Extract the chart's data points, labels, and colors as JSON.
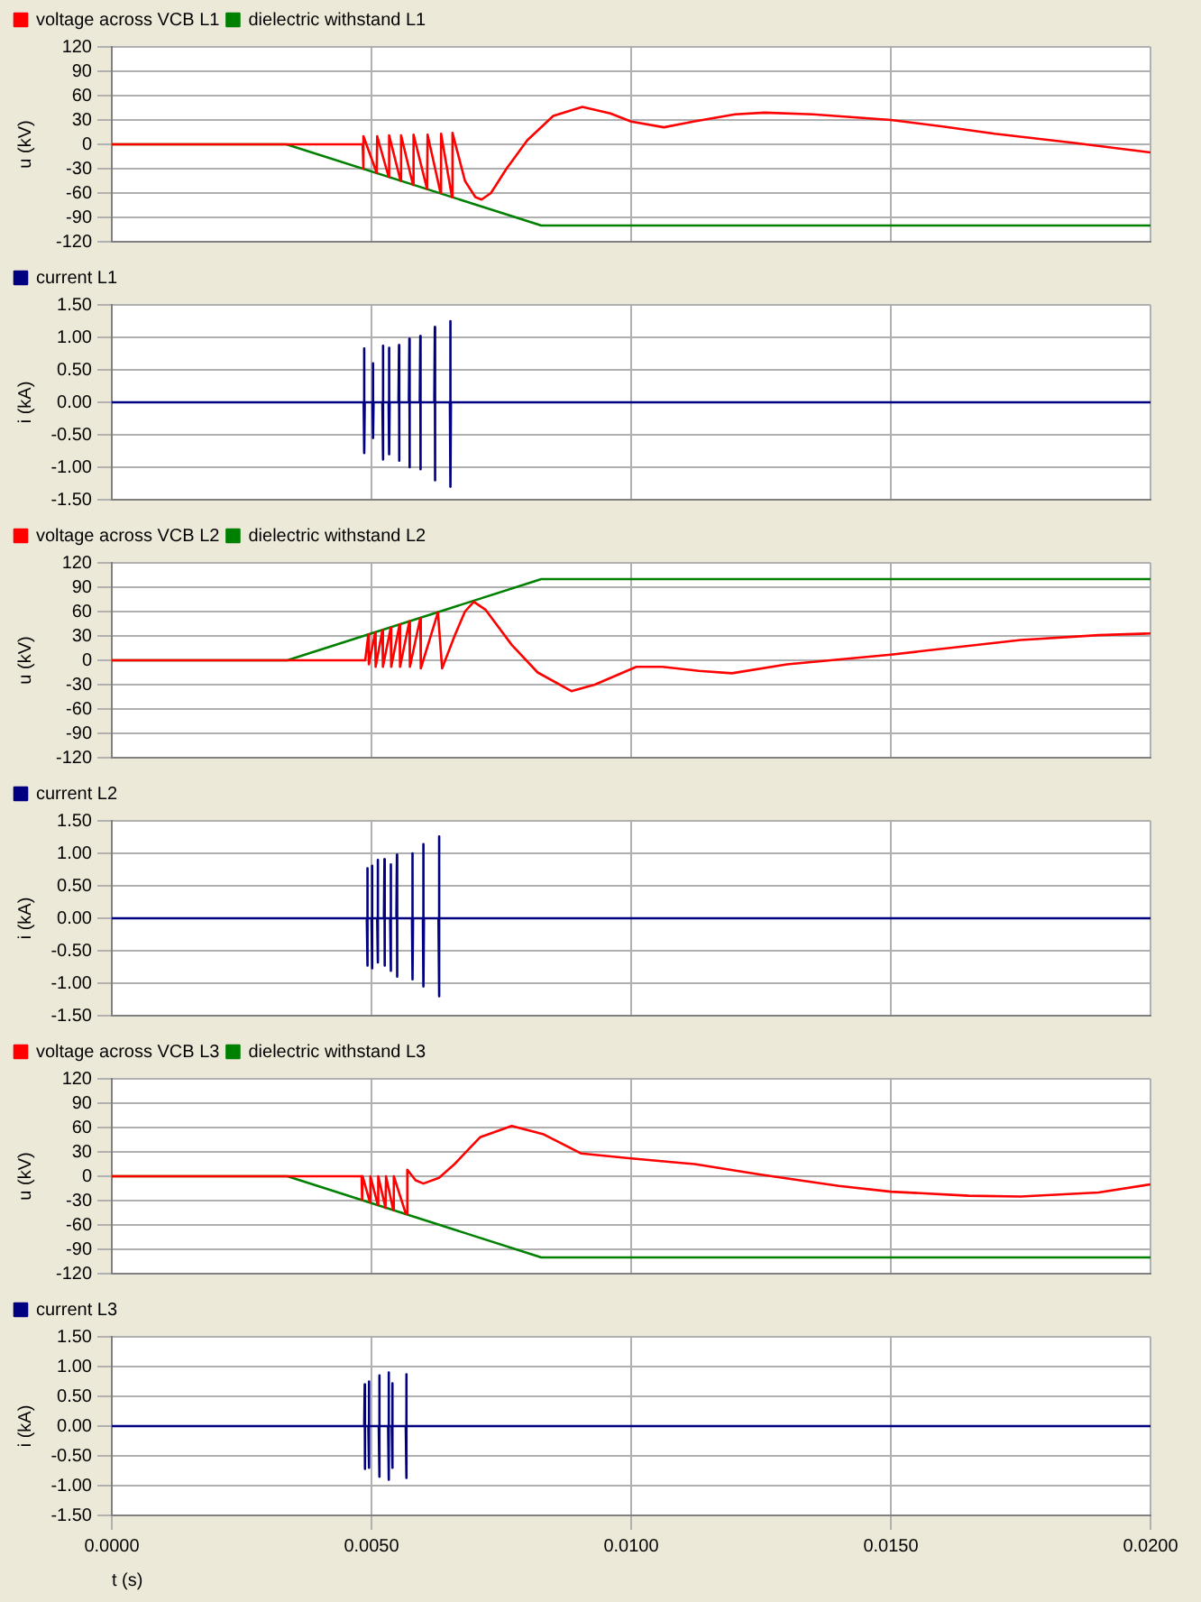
{
  "chart_data": [
    {
      "type": "line",
      "ylabel": "u (kV)",
      "legend": "top left",
      "grid": true,
      "marker": "none",
      "tick_labels": "y",
      "xlim": [
        0,
        0.02
      ],
      "xticks": [
        0,
        0.005,
        0.01,
        0.015,
        0.02
      ],
      "ylim": [
        -120,
        120
      ],
      "yticks": [
        -120,
        -90,
        -60,
        -30,
        0,
        30,
        60,
        90,
        120
      ],
      "series": [
        {
          "name": "voltage across VCB L1",
          "color": "#ff0000",
          "x": [
            0,
            0.00483,
            0.00484,
            0.00485,
            0.0051,
            0.00511,
            0.00533,
            0.00534,
            0.00556,
            0.00557,
            0.0058,
            0.00581,
            0.00607,
            0.00608,
            0.00633,
            0.00634,
            0.00655,
            0.00656,
            0.0068,
            0.007,
            0.00712,
            0.0073,
            0.0076,
            0.008,
            0.0085,
            0.00906,
            0.0096,
            0.01,
            0.01063,
            0.0112,
            0.012,
            0.01257,
            0.0135,
            0.015,
            0.016,
            0.017,
            0.0185,
            0.02
          ],
          "values": [
            0,
            0,
            -30,
            10,
            -35,
            10,
            -40,
            11,
            -45,
            11,
            -50,
            12,
            -55,
            12,
            -60,
            13,
            -65,
            14,
            -45,
            -65,
            -68,
            -60,
            -30,
            5,
            35,
            46,
            38,
            28,
            21,
            28,
            37,
            39,
            37,
            30,
            22,
            13,
            2,
            -10
          ]
        },
        {
          "name": "dielectric withstand L1",
          "color": "#008000",
          "x": [
            0,
            0.00336,
            0.00827,
            0.02
          ],
          "values": [
            0,
            0,
            -100,
            -100
          ]
        }
      ]
    },
    {
      "type": "line",
      "ylabel": "i (kA)",
      "legend": "top left",
      "grid": true,
      "marker": "none",
      "tick_labels": "y",
      "xlim": [
        0,
        0.02
      ],
      "xticks": [
        0,
        0.005,
        0.01,
        0.015,
        0.02
      ],
      "ylim": [
        -1.5,
        1.5
      ],
      "yticks": [
        {
          "value": -1.5,
          "label": "-1.50"
        },
        {
          "value": -1,
          "label": "-1.00"
        },
        {
          "value": -0.5,
          "label": "-0.50"
        },
        {
          "value": 0,
          "label": "0.00"
        },
        {
          "value": 0.5,
          "label": "0.50"
        },
        {
          "value": 1,
          "label": "1.00"
        },
        {
          "value": 1.5,
          "label": "1.50"
        }
      ],
      "series": [
        {
          "name": "current L1",
          "color": "#000080",
          "x": [
            0,
            0.00485,
            0.00486,
            0.00486,
            0.00487,
            0.00502,
            0.00503,
            0.00503,
            0.00504,
            0.00521,
            0.00522,
            0.00522,
            0.00523,
            0.00533,
            0.00534,
            0.00534,
            0.00535,
            0.00552,
            0.00553,
            0.00553,
            0.00554,
            0.00572,
            0.00573,
            0.00573,
            0.00574,
            0.00593,
            0.00594,
            0.00594,
            0.00595,
            0.00621,
            0.00622,
            0.00622,
            0.00623,
            0.00651,
            0.00652,
            0.00652,
            0.00653,
            0.02
          ],
          "values": [
            0,
            0,
            0.83,
            -0.78,
            0,
            0,
            0.6,
            -0.55,
            0,
            0,
            0.87,
            -0.88,
            0,
            0,
            0.84,
            -0.8,
            0,
            0,
            0.88,
            -0.9,
            0,
            0,
            0.98,
            -1,
            0,
            0,
            1.02,
            -1.03,
            0,
            0,
            1.16,
            -1.2,
            0,
            0,
            1.25,
            -1.3,
            0,
            0
          ]
        }
      ]
    },
    {
      "type": "line",
      "ylabel": "u (kV)",
      "legend": "top left",
      "grid": true,
      "marker": "none",
      "tick_labels": "y",
      "xlim": [
        0,
        0.02
      ],
      "xticks": [
        0,
        0.005,
        0.01,
        0.015,
        0.02
      ],
      "ylim": [
        -120,
        120
      ],
      "yticks": [
        -120,
        -90,
        -60,
        -30,
        0,
        30,
        60,
        90,
        120
      ],
      "series": [
        {
          "name": "voltage across VCB L2",
          "color": "#ff0000",
          "x": [
            0,
            0.00488,
            0.00494,
            0.00495,
            0.00507,
            0.00508,
            0.00521,
            0.00522,
            0.00537,
            0.00538,
            0.00554,
            0.00555,
            0.00573,
            0.00574,
            0.00594,
            0.00595,
            0.00628,
            0.00636,
            0.0066,
            0.0068,
            0.00697,
            0.0072,
            0.0077,
            0.0082,
            0.00885,
            0.0093,
            0.0101,
            0.0106,
            0.0113,
            0.01194,
            0.013,
            0.015,
            0.0175,
            0.019,
            0.02
          ],
          "values": [
            0,
            0,
            32,
            -5,
            34,
            -8,
            37,
            -8,
            40,
            -8,
            44,
            -8,
            48,
            -8,
            52,
            -10,
            59,
            -10,
            30,
            60,
            72,
            62,
            19,
            -15,
            -38,
            -30,
            -8,
            -8,
            -13,
            -16,
            -5,
            7,
            25,
            31,
            33
          ]
        },
        {
          "name": "dielectric withstand L2",
          "color": "#008000",
          "x": [
            0,
            0.00338,
            0.00827,
            0.02
          ],
          "values": [
            0,
            0,
            100,
            100
          ]
        }
      ]
    },
    {
      "type": "line",
      "ylabel": "i (kA)",
      "legend": "top left",
      "grid": true,
      "marker": "none",
      "tick_labels": "y",
      "xlim": [
        0,
        0.02
      ],
      "xticks": [
        0,
        0.005,
        0.01,
        0.015,
        0.02
      ],
      "ylim": [
        -1.5,
        1.5
      ],
      "yticks": [
        {
          "value": -1.5,
          "label": "-1.50"
        },
        {
          "value": -1,
          "label": "-1.00"
        },
        {
          "value": -0.5,
          "label": "-0.50"
        },
        {
          "value": 0,
          "label": "0.00"
        },
        {
          "value": 0.5,
          "label": "0.50"
        },
        {
          "value": 1,
          "label": "1.00"
        },
        {
          "value": 1.5,
          "label": "1.50"
        }
      ],
      "series": [
        {
          "name": "current L2",
          "color": "#000080",
          "x": [
            0,
            0.00491,
            0.00492,
            0.00492,
            0.00493,
            0.005,
            0.00501,
            0.00501,
            0.00502,
            0.00511,
            0.00512,
            0.00512,
            0.00513,
            0.00524,
            0.00525,
            0.00525,
            0.00526,
            0.00536,
            0.00537,
            0.00537,
            0.00538,
            0.00548,
            0.00549,
            0.00549,
            0.0055,
            0.00578,
            0.00579,
            0.00579,
            0.0058,
            0.00599,
            0.006,
            0.006,
            0.00601,
            0.00629,
            0.0063,
            0.0063,
            0.00631,
            0.02
          ],
          "values": [
            0,
            0,
            0.77,
            -0.73,
            0,
            0,
            0.81,
            -0.77,
            0,
            0,
            0.9,
            -0.68,
            0,
            0,
            0.91,
            -0.73,
            0,
            0,
            0.83,
            -0.81,
            0,
            0,
            0.98,
            -0.9,
            0,
            0,
            1,
            -0.94,
            0,
            0,
            1.14,
            -1.05,
            0,
            0,
            1.26,
            -1.2,
            0,
            0
          ]
        }
      ]
    },
    {
      "type": "line",
      "ylabel": "u (kV)",
      "legend": "top left",
      "grid": true,
      "marker": "none",
      "tick_labels": "y",
      "xlim": [
        0,
        0.02
      ],
      "xticks": [
        0,
        0.005,
        0.01,
        0.015,
        0.02
      ],
      "ylim": [
        -120,
        120
      ],
      "yticks": [
        -120,
        -90,
        -60,
        -30,
        0,
        30,
        60,
        90,
        120
      ],
      "series": [
        {
          "name": "voltage across VCB L3",
          "color": "#ff0000",
          "x": [
            0,
            0.00481,
            0.00482,
            0.00483,
            0.00497,
            0.00498,
            0.00512,
            0.00513,
            0.00527,
            0.00528,
            0.00542,
            0.00543,
            0.00566,
            0.00569,
            0.00585,
            0.006,
            0.0063,
            0.0066,
            0.00709,
            0.0077,
            0.0083,
            0.00904,
            0.01,
            0.01122,
            0.0125,
            0.014,
            0.015,
            0.0165,
            0.0175,
            0.019,
            0.02
          ],
          "values": [
            0,
            0,
            -29,
            0,
            -32,
            0,
            -35,
            0,
            -39,
            0,
            -42,
            0,
            -46,
            8,
            -5,
            -9,
            -2,
            15,
            48,
            62,
            52,
            28,
            22,
            15,
            2,
            -12,
            -19,
            -24,
            -25,
            -20,
            -10
          ]
        },
        {
          "name": "dielectric withstand L3",
          "color": "#008000",
          "x": [
            0,
            0.00338,
            0.00827,
            0.02
          ],
          "values": [
            0,
            0,
            -100,
            -100
          ]
        }
      ]
    },
    {
      "type": "line",
      "ylabel": "i (kA)",
      "xlabel": "t (s)",
      "legend": "top left",
      "grid": true,
      "marker": "none",
      "xlim": [
        0,
        0.02
      ],
      "xticks": [
        {
          "value": 0,
          "label": "0.0000"
        },
        {
          "value": 0.005,
          "label": "0.0050"
        },
        {
          "value": 0.01,
          "label": "0.0100"
        },
        {
          "value": 0.015,
          "label": "0.0150"
        },
        {
          "value": 0.02,
          "label": "0.0200"
        }
      ],
      "ylim": [
        -1.5,
        1.5
      ],
      "yticks": [
        {
          "value": -1.5,
          "label": "-1.50"
        },
        {
          "value": -1,
          "label": "-1.00"
        },
        {
          "value": -0.5,
          "label": "-0.50"
        },
        {
          "value": 0,
          "label": "0.00"
        },
        {
          "value": 0.5,
          "label": "0.50"
        },
        {
          "value": 1,
          "label": "1.00"
        },
        {
          "value": 1.5,
          "label": "1.50"
        }
      ],
      "series": [
        {
          "name": "current L3",
          "color": "#000080",
          "x": [
            0,
            0.00486,
            0.00487,
            0.00487,
            0.00488,
            0.00494,
            0.00495,
            0.00495,
            0.00496,
            0.00514,
            0.00515,
            0.00515,
            0.00516,
            0.00532,
            0.00533,
            0.00533,
            0.00534,
            0.00539,
            0.0054,
            0.0054,
            0.00541,
            0.00566,
            0.00567,
            0.00567,
            0.00568,
            0.02
          ],
          "values": [
            0,
            0,
            0.7,
            -0.72,
            0,
            0,
            0.75,
            -0.7,
            0,
            0,
            0.85,
            -0.85,
            0,
            0,
            0.9,
            -0.9,
            0,
            0,
            0.72,
            -0.7,
            0,
            0,
            0.87,
            -0.87,
            0,
            0
          ]
        }
      ]
    }
  ]
}
